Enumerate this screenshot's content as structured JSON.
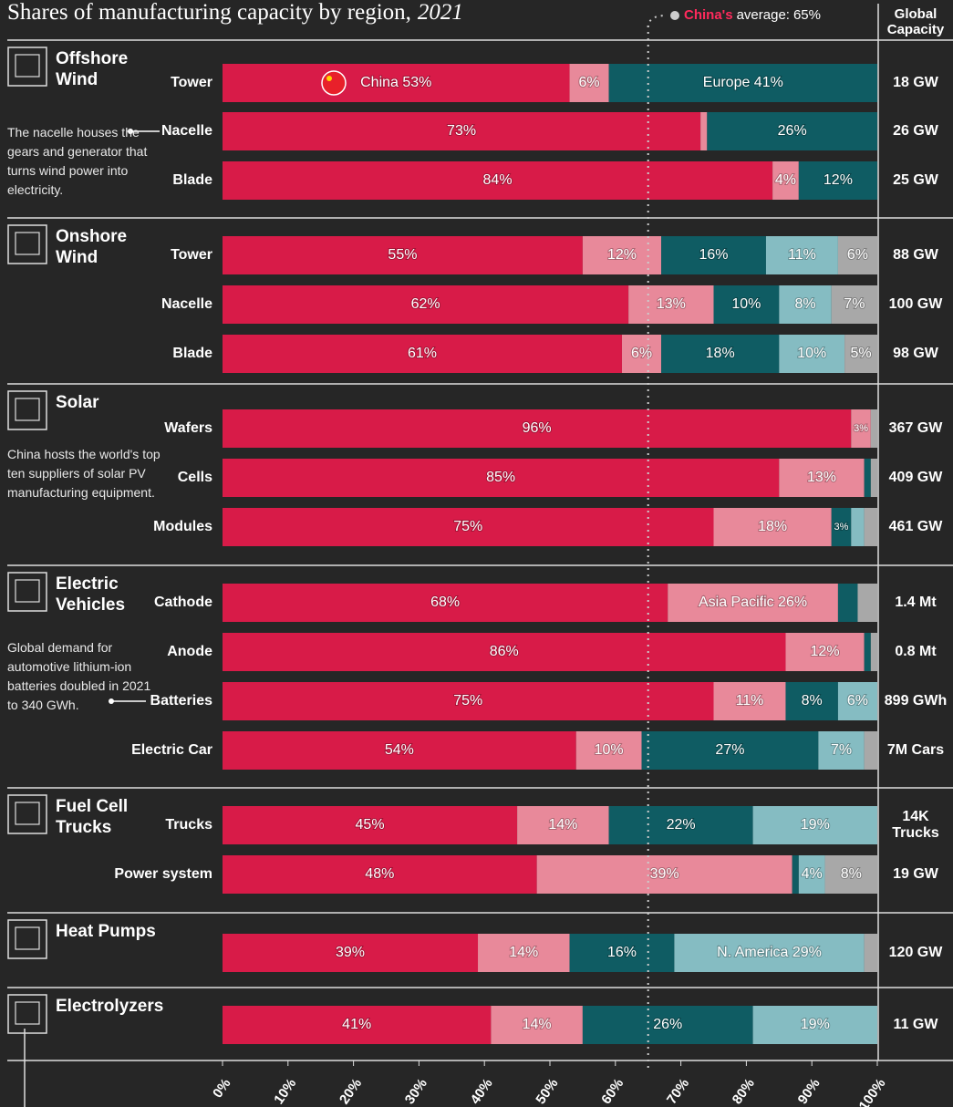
{
  "chart_data": {
    "type": "bar",
    "orientation": "horizontal",
    "stacked": true,
    "title": "Shares of manufacturing capacity by region,",
    "title_year": "2021",
    "capacity_header": "Global Capacity",
    "average": {
      "name": "China's",
      "text": "average:",
      "value": 65,
      "label": "65%"
    },
    "xlim": [
      0,
      100
    ],
    "xticks": [
      {
        "value": 0,
        "label": "0%"
      },
      {
        "value": 10,
        "label": "10%"
      },
      {
        "value": 20,
        "label": "20%"
      },
      {
        "value": 30,
        "label": "30%"
      },
      {
        "value": 40,
        "label": "40%"
      },
      {
        "value": 50,
        "label": "50%"
      },
      {
        "value": 60,
        "label": "60%"
      },
      {
        "value": 70,
        "label": "70%"
      },
      {
        "value": 80,
        "label": "80%"
      },
      {
        "value": 90,
        "label": "90%"
      },
      {
        "value": 100,
        "label": "100%"
      }
    ],
    "groups": [
      {
        "name": "Offshore Wind",
        "categories": [
          "Tower",
          "Nacelle",
          "Blade"
        ],
        "capacity": [
          "18 GW",
          "26 GW",
          "25 GW"
        ],
        "note": "The nacelle houses the gears and generator that turns wind power into electricity."
      },
      {
        "name": "Onshore Wind",
        "categories": [
          "Tower",
          "Nacelle",
          "Blade"
        ],
        "capacity": [
          "88 GW",
          "100 GW",
          "98 GW"
        ]
      },
      {
        "name": "Solar",
        "categories": [
          "Wafers",
          "Cells",
          "Modules"
        ],
        "capacity": [
          "367 GW",
          "409 GW",
          "461 GW"
        ],
        "note": "China hosts the world's top ten suppliers of solar PV manufacturing equipment."
      },
      {
        "name": "Electric Vehicles",
        "categories": [
          "Cathode",
          "Anode",
          "Batteries",
          "Electric Car"
        ],
        "capacity": [
          "1.4 Mt",
          "0.8 Mt",
          "899 GWh",
          "7M Cars"
        ],
        "note": "Global demand for automotive lithium-ion batteries doubled in 2021 to 340 GWh."
      },
      {
        "name": "Fuel Cell Trucks",
        "categories": [
          "Trucks",
          "Power system"
        ],
        "capacity": [
          "14K Trucks",
          "19 GW"
        ]
      },
      {
        "name": "Heat Pumps",
        "categories": [
          null
        ],
        "capacity": [
          "120 GW"
        ]
      },
      {
        "name": "Electrolyzers",
        "categories": [
          null
        ],
        "capacity": [
          "11 GW"
        ]
      }
    ],
    "series": [
      {
        "name": "China",
        "color": "#d81b48",
        "values": [
          53,
          73,
          84,
          55,
          62,
          61,
          96,
          85,
          75,
          68,
          86,
          75,
          54,
          45,
          48,
          39,
          41
        ],
        "value_labels": [
          "China 53%",
          "73%",
          "84%",
          "55%",
          "62%",
          "61%",
          "96%",
          "85%",
          "75%",
          "68%",
          "86%",
          "75%",
          "54%",
          "45%",
          "48%",
          "39%",
          "41%"
        ]
      },
      {
        "name": "Asia Pacific",
        "color": "#e8899a",
        "values": [
          6,
          1,
          4,
          12,
          13,
          6,
          3,
          13,
          18,
          26,
          12,
          11,
          10,
          14,
          39,
          14,
          14
        ],
        "value_labels": [
          "6%",
          null,
          "4%",
          "12%",
          "13%",
          "6%",
          "3%",
          "13%",
          "18%",
          "Asia Pacific 26%",
          "12%",
          "11%",
          "10%",
          "14%",
          "39%",
          "14%",
          "14%"
        ]
      },
      {
        "name": "Europe",
        "color": "#0f5c63",
        "values": [
          41,
          26,
          12,
          16,
          10,
          18,
          0,
          1,
          3,
          3,
          1,
          8,
          27,
          22,
          1,
          16,
          26
        ],
        "value_labels": [
          "Europe 41%",
          "26%",
          "12%",
          "16%",
          "10%",
          "18%",
          null,
          null,
          "3%",
          null,
          null,
          "8%",
          "27%",
          "22%",
          null,
          "16%",
          "26%"
        ]
      },
      {
        "name": "N. America",
        "color": "#85bcc2",
        "values": [
          0,
          0,
          0,
          11,
          8,
          10,
          0,
          0,
          2,
          0,
          0,
          6,
          7,
          19,
          4,
          29,
          19
        ],
        "value_labels": [
          null,
          null,
          null,
          "11%",
          "8%",
          "10%",
          null,
          null,
          null,
          null,
          null,
          "6%",
          "7%",
          "19%",
          "4%",
          "N. America 29%",
          "19%"
        ]
      },
      {
        "color": "#a8a8a8",
        "values": [
          0,
          0,
          0,
          6,
          7,
          5,
          1,
          1,
          2,
          3,
          1,
          0,
          2,
          0,
          8,
          2,
          0
        ],
        "value_labels": [
          null,
          null,
          null,
          "6%",
          "7%",
          "5%",
          null,
          null,
          null,
          null,
          null,
          null,
          null,
          null,
          "8%",
          null,
          null
        ]
      }
    ]
  }
}
